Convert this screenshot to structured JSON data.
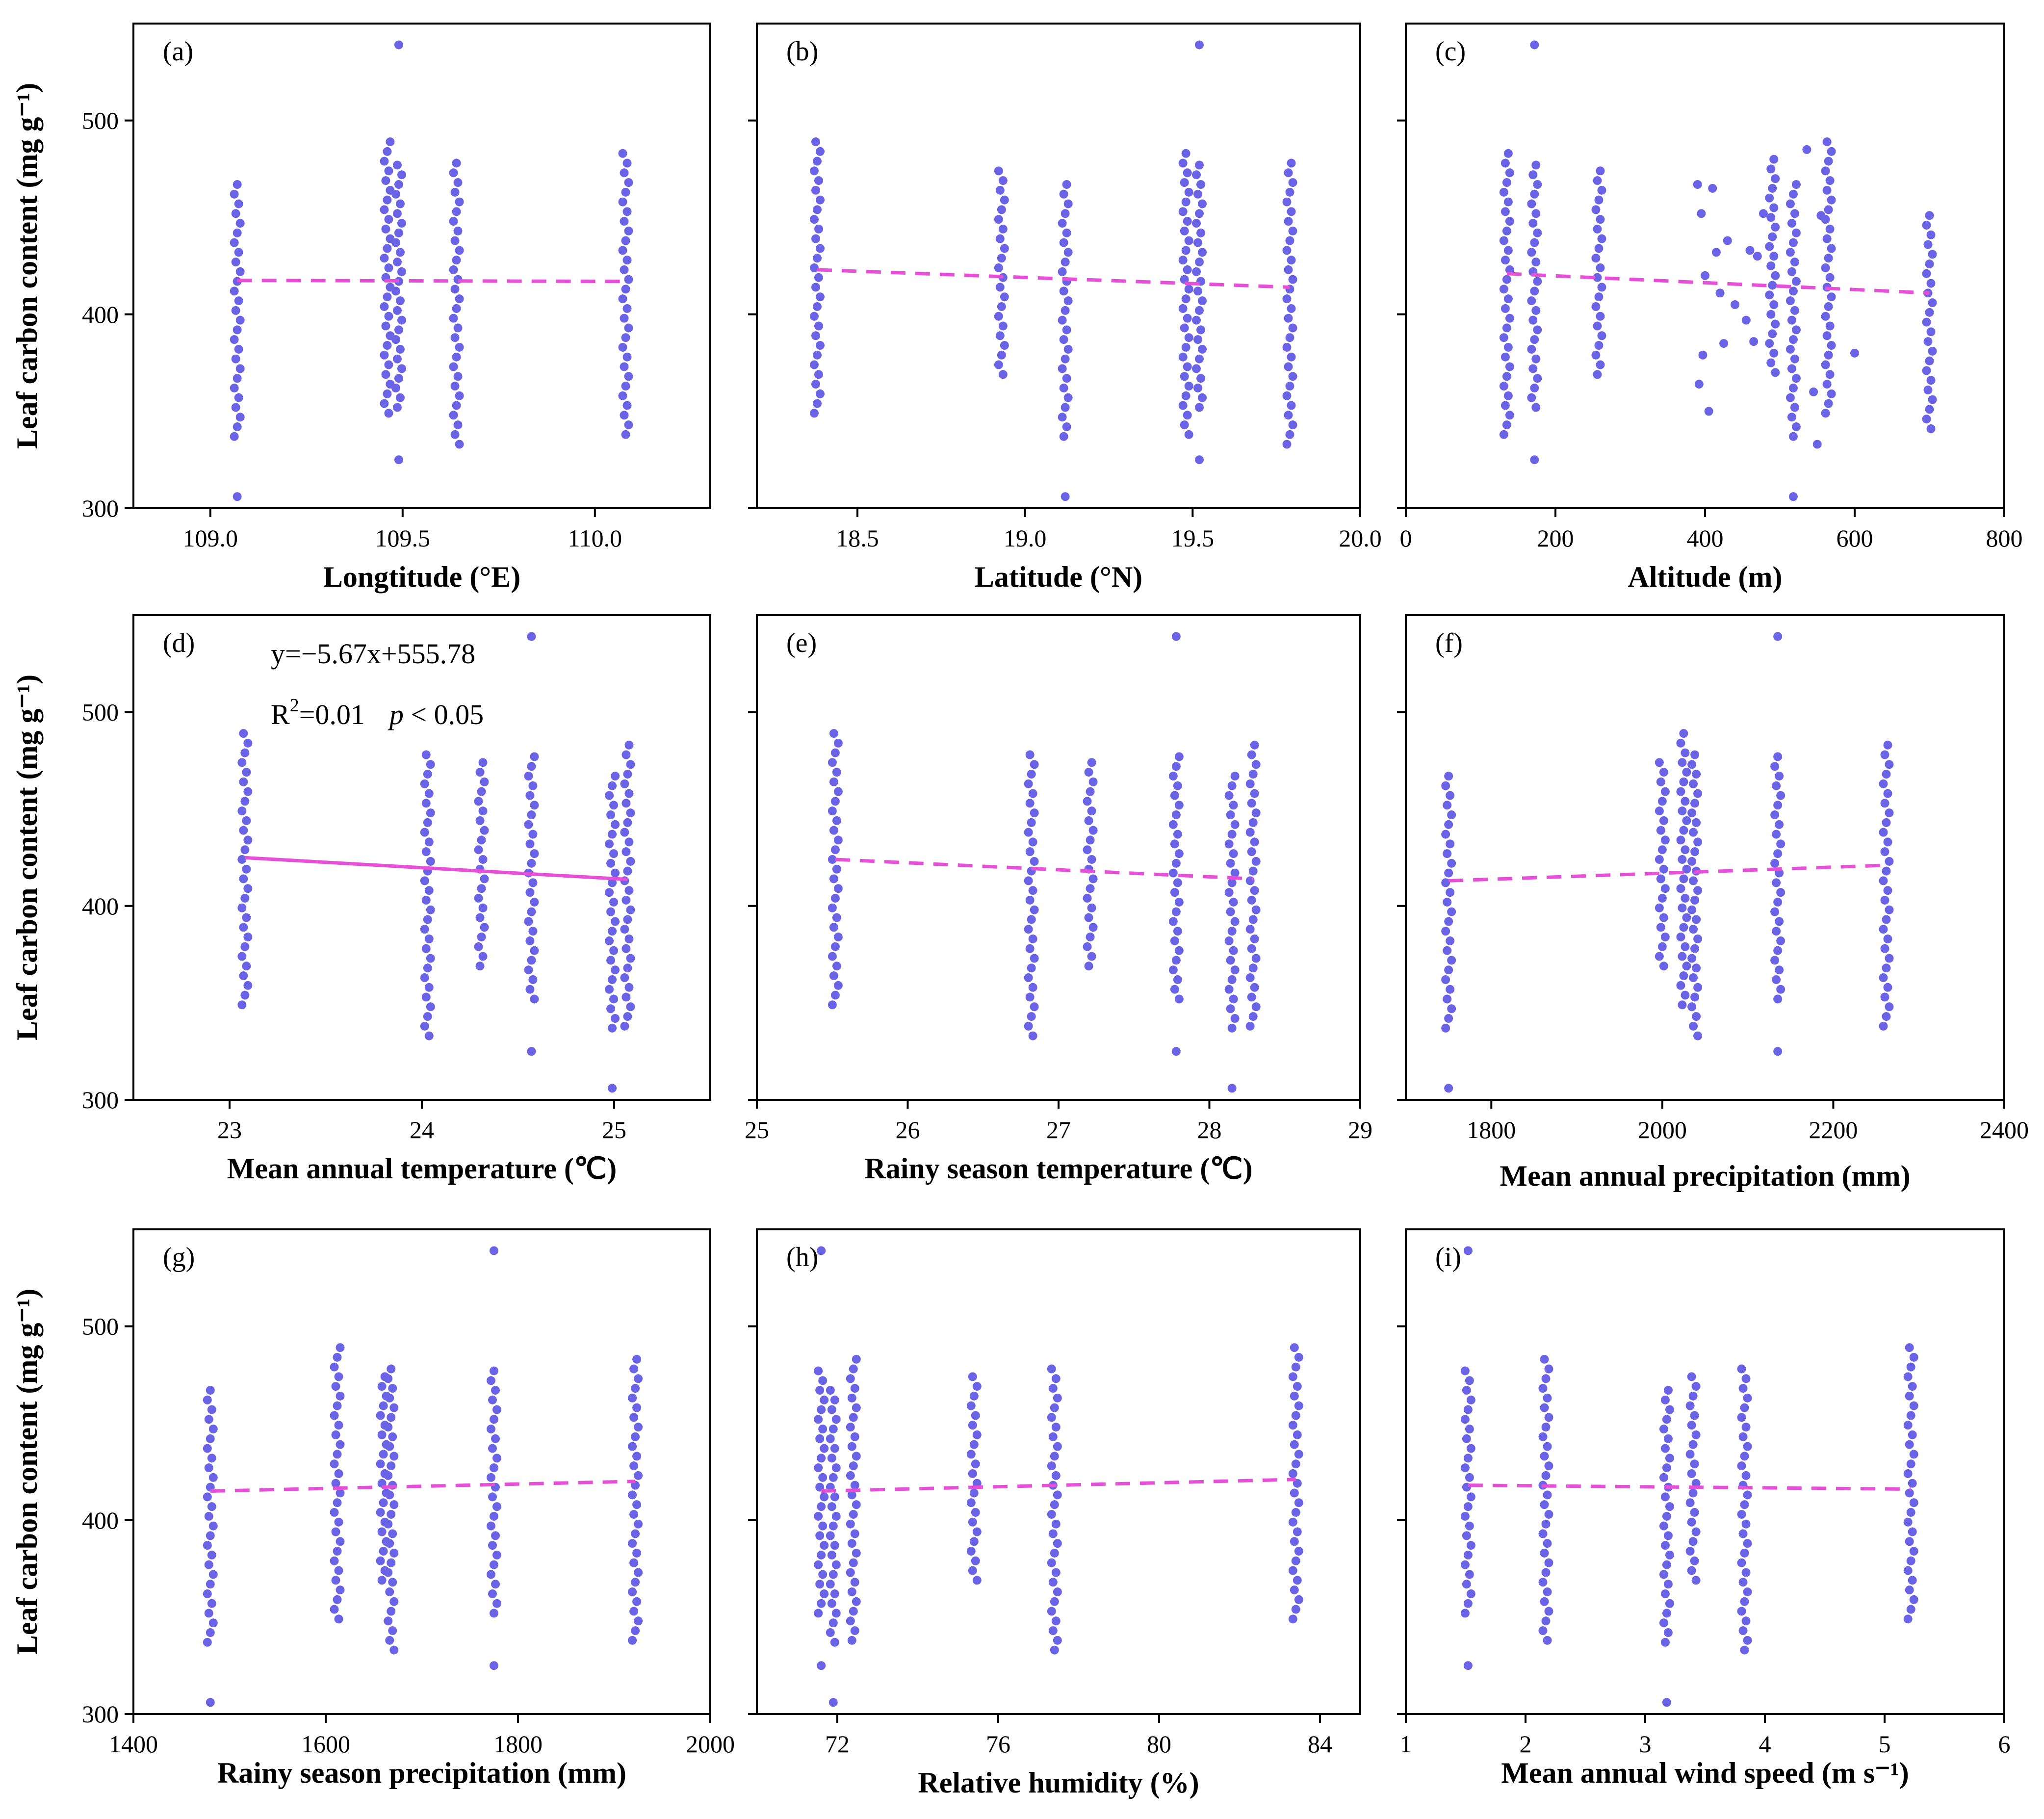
{
  "colors": {
    "points": "#6b63e6",
    "trend": "#e64fd8",
    "axis": "#000000"
  },
  "chart_data": [
    {
      "id": "a",
      "type": "scatter",
      "panel_label": "(a)",
      "xlabel": "Longtitude (°E)",
      "ylabel": "Leaf  carbon  content  (mg g⁻¹)",
      "xlim": [
        108.8,
        110.3
      ],
      "ylim": [
        300,
        550
      ],
      "xticks": [
        109.0,
        109.5,
        110.0
      ],
      "xtick_labels": [
        "109.0",
        "109.5",
        "110.0"
      ],
      "yticks": [
        300,
        400,
        500
      ],
      "ytick_labels": [
        "300",
        "400",
        "500"
      ],
      "groups": [
        {
          "x": 109.07,
          "min": 337,
          "max": 467,
          "outliers": [
            306
          ]
        },
        {
          "x": 109.46,
          "min": 349,
          "max": 490
        },
        {
          "x": 109.49,
          "min": 352,
          "max": 480,
          "outliers": [
            325,
            539
          ]
        },
        {
          "x": 109.64,
          "min": 333,
          "max": 481
        },
        {
          "x": 110.08,
          "min": 338,
          "max": 486
        }
      ],
      "trend": {
        "style": "dashed",
        "x": [
          109.07,
          110.08
        ],
        "y": [
          417.5,
          417.0
        ]
      }
    },
    {
      "id": "b",
      "type": "scatter",
      "panel_label": "(b)",
      "xlabel": "Latitude (°N)",
      "ylabel": "",
      "xlim": [
        18.2,
        20.0
      ],
      "ylim": [
        300,
        550
      ],
      "xticks": [
        18.5,
        19.0,
        19.5,
        20.0
      ],
      "xtick_labels": [
        "18.5",
        "19.0",
        "19.5",
        "20.0"
      ],
      "yticks": [
        300,
        400,
        500
      ],
      "ytick_labels": [
        "",
        "",
        ""
      ],
      "groups": [
        {
          "x": 18.38,
          "min": 349,
          "max": 491
        },
        {
          "x": 18.93,
          "min": 369,
          "max": 476
        },
        {
          "x": 19.12,
          "min": 337,
          "max": 467,
          "outliers": [
            306
          ]
        },
        {
          "x": 19.48,
          "min": 338,
          "max": 486
        },
        {
          "x": 19.52,
          "min": 352,
          "max": 480,
          "outliers": [
            325,
            539
          ]
        },
        {
          "x": 19.79,
          "min": 333,
          "max": 481
        }
      ],
      "trend": {
        "style": "dashed",
        "x": [
          18.38,
          19.79
        ],
        "y": [
          423,
          414
        ]
      }
    },
    {
      "id": "c",
      "type": "scatter",
      "panel_label": "(c)",
      "xlabel": "Altitude (m)",
      "ylabel": "",
      "xlim": [
        0,
        800
      ],
      "ylim": [
        300,
        550
      ],
      "xticks": [
        0,
        200,
        400,
        600,
        800
      ],
      "xtick_labels": [
        "0",
        "200",
        "400",
        "600",
        "800"
      ],
      "yticks": [
        300,
        400,
        500
      ],
      "ytick_labels": [
        "",
        "",
        ""
      ],
      "groups": [
        {
          "x": 135,
          "min": 338,
          "max": 486
        },
        {
          "x": 172,
          "min": 352,
          "max": 480,
          "outliers": [
            325,
            539
          ]
        },
        {
          "x": 258,
          "min": 369,
          "max": 476
        },
        {
          "x": 490,
          "min": 370,
          "max": 481
        },
        {
          "x": 518,
          "min": 337,
          "max": 467,
          "outliers": [
            306
          ]
        },
        {
          "x": 565,
          "min": 349,
          "max": 491
        },
        {
          "x": 700,
          "min": 341,
          "max": 452
        }
      ],
      "scatter_points": [
        {
          "x": 390,
          "y": 467
        },
        {
          "x": 395,
          "y": 452
        },
        {
          "x": 400,
          "y": 420
        },
        {
          "x": 397,
          "y": 379
        },
        {
          "x": 392,
          "y": 364
        },
        {
          "x": 405,
          "y": 350
        },
        {
          "x": 410,
          "y": 465
        },
        {
          "x": 415,
          "y": 432
        },
        {
          "x": 420,
          "y": 411
        },
        {
          "x": 425,
          "y": 385
        },
        {
          "x": 430,
          "y": 438
        },
        {
          "x": 440,
          "y": 405
        },
        {
          "x": 455,
          "y": 397
        },
        {
          "x": 460,
          "y": 433
        },
        {
          "x": 465,
          "y": 386
        },
        {
          "x": 470,
          "y": 430
        },
        {
          "x": 478,
          "y": 452
        },
        {
          "x": 536,
          "y": 485
        },
        {
          "x": 545,
          "y": 360
        },
        {
          "x": 550,
          "y": 333
        },
        {
          "x": 555,
          "y": 451
        },
        {
          "x": 600,
          "y": 380
        }
      ],
      "trend": {
        "style": "dashed",
        "x": [
          135,
          700
        ],
        "y": [
          421,
          411
        ]
      }
    },
    {
      "id": "d",
      "type": "scatter",
      "panel_label": "(d)",
      "xlabel": "Mean  annual  temperature (℃)",
      "ylabel": "Leaf  carbon  content  (mg g⁻¹)",
      "xlim": [
        22.5,
        25.5
      ],
      "ylim": [
        300,
        550
      ],
      "xticks": [
        23,
        24,
        25
      ],
      "xtick_labels": [
        "23",
        "24",
        "25"
      ],
      "yticks": [
        300,
        400,
        500
      ],
      "ytick_labels": [
        "300",
        "400",
        "500"
      ],
      "groups": [
        {
          "x": 23.08,
          "min": 349,
          "max": 491
        },
        {
          "x": 24.03,
          "min": 333,
          "max": 481
        },
        {
          "x": 24.31,
          "min": 369,
          "max": 476
        },
        {
          "x": 24.57,
          "min": 352,
          "max": 480,
          "outliers": [
            325,
            539
          ]
        },
        {
          "x": 24.99,
          "min": 337,
          "max": 467,
          "outliers": [
            306
          ]
        },
        {
          "x": 25.07,
          "min": 338,
          "max": 486
        }
      ],
      "trend": {
        "style": "solid",
        "x": [
          23.08,
          25.07
        ],
        "y": [
          424.9,
          413.7
        ]
      },
      "equation": "y=−5.67x+555.78",
      "r2_prefix": "R",
      "r2_sup": "2",
      "r2_value": "=0.01",
      "p_symbol": "p",
      "p_text": " < 0.05"
    },
    {
      "id": "e",
      "type": "scatter",
      "panel_label": "(e)",
      "xlabel": "Rainy  season  temperature (℃)",
      "ylabel": "",
      "xlim": [
        25,
        29
      ],
      "ylim": [
        300,
        550
      ],
      "xticks": [
        25,
        26,
        27,
        28,
        29
      ],
      "xtick_labels": [
        "25",
        "26",
        "27",
        "28",
        "29"
      ],
      "yticks": [
        300,
        400,
        500
      ],
      "ytick_labels": [
        "",
        "",
        ""
      ],
      "groups": [
        {
          "x": 25.52,
          "min": 349,
          "max": 491
        },
        {
          "x": 26.82,
          "min": 333,
          "max": 481
        },
        {
          "x": 27.21,
          "min": 369,
          "max": 476
        },
        {
          "x": 27.78,
          "min": 352,
          "max": 480,
          "outliers": [
            325,
            539
          ]
        },
        {
          "x": 28.15,
          "min": 337,
          "max": 467,
          "outliers": [
            306
          ]
        },
        {
          "x": 28.29,
          "min": 338,
          "max": 486
        }
      ],
      "trend": {
        "style": "dashed",
        "x": [
          25.52,
          28.29
        ],
        "y": [
          424,
          414
        ]
      }
    },
    {
      "id": "f",
      "type": "scatter",
      "panel_label": "(f)",
      "xlabel": "Mean  annual  precipitation (mm)",
      "ylabel": "",
      "xlim": [
        1700,
        2400
      ],
      "ylim": [
        300,
        550
      ],
      "xticks": [
        1800,
        2000,
        2200,
        2400
      ],
      "xtick_labels": [
        "1800",
        "2000",
        "2200",
        "2400"
      ],
      "yticks": [
        300,
        400,
        500
      ],
      "ytick_labels": [
        "",
        "",
        ""
      ],
      "groups": [
        {
          "x": 1750,
          "min": 337,
          "max": 467,
          "outliers": [
            306
          ]
        },
        {
          "x": 2000,
          "min": 369,
          "max": 476
        },
        {
          "x": 2025,
          "min": 349,
          "max": 491
        },
        {
          "x": 2038,
          "min": 333,
          "max": 481
        },
        {
          "x": 2135,
          "min": 352,
          "max": 480,
          "outliers": [
            325,
            539
          ]
        },
        {
          "x": 2262,
          "min": 338,
          "max": 486
        }
      ],
      "trend": {
        "style": "dashed",
        "x": [
          1750,
          2262
        ],
        "y": [
          413,
          421
        ]
      }
    },
    {
      "id": "g",
      "type": "scatter",
      "panel_label": "(g)",
      "xlabel": "Rainy season  precipitation (mm)",
      "ylabel": "Leaf  carbon  content  (mg g⁻¹)",
      "xlim": [
        1400,
        2000
      ],
      "ylim": [
        300,
        550
      ],
      "xticks": [
        1400,
        1600,
        1800,
        2000
      ],
      "xtick_labels": [
        "1400",
        "1600",
        "1800",
        "2000"
      ],
      "yticks": [
        300,
        400,
        500
      ],
      "ytick_labels": [
        "300",
        "400",
        "500"
      ],
      "groups": [
        {
          "x": 1480,
          "min": 337,
          "max": 467,
          "outliers": [
            306
          ]
        },
        {
          "x": 1612,
          "min": 349,
          "max": 491
        },
        {
          "x": 1660,
          "min": 369,
          "max": 476
        },
        {
          "x": 1668,
          "min": 333,
          "max": 481
        },
        {
          "x": 1775,
          "min": 352,
          "max": 480,
          "outliers": [
            325,
            539
          ]
        },
        {
          "x": 1922,
          "min": 338,
          "max": 486
        }
      ],
      "trend": {
        "style": "dashed",
        "x": [
          1480,
          1922
        ],
        "y": [
          415,
          420
        ]
      }
    },
    {
      "id": "h",
      "type": "scatter",
      "panel_label": "(h)",
      "xlabel": "Relative  humidity (%)",
      "ylabel": "",
      "xlim": [
        70,
        85
      ],
      "ylim": [
        300,
        550
      ],
      "xticks": [
        72,
        76,
        80,
        84
      ],
      "xtick_labels": [
        "72",
        "76",
        "80",
        "84"
      ],
      "yticks": [
        300,
        400,
        500
      ],
      "ytick_labels": [
        "",
        "",
        ""
      ],
      "groups": [
        {
          "x": 71.6,
          "min": 352,
          "max": 480,
          "outliers": [
            325,
            539
          ]
        },
        {
          "x": 71.9,
          "min": 337,
          "max": 467,
          "outliers": [
            306
          ]
        },
        {
          "x": 72.4,
          "min": 338,
          "max": 486
        },
        {
          "x": 75.4,
          "min": 369,
          "max": 476
        },
        {
          "x": 77.4,
          "min": 333,
          "max": 481
        },
        {
          "x": 83.4,
          "min": 349,
          "max": 491
        }
      ],
      "trend": {
        "style": "dashed",
        "x": [
          71.6,
          83.4
        ],
        "y": [
          415,
          421
        ]
      }
    },
    {
      "id": "i",
      "type": "scatter",
      "panel_label": "(i)",
      "xlabel": "Mean annual wind speed (m s⁻¹)",
      "ylabel": "",
      "xlim": [
        1,
        6
      ],
      "ylim": [
        300,
        550
      ],
      "xticks": [
        1,
        2,
        3,
        4,
        5,
        6
      ],
      "xtick_labels": [
        "1",
        "2",
        "3",
        "4",
        "5",
        "6"
      ],
      "yticks": [
        300,
        400,
        500
      ],
      "ytick_labels": [
        "",
        "",
        ""
      ],
      "groups": [
        {
          "x": 1.52,
          "min": 352,
          "max": 480,
          "outliers": [
            325,
            539
          ]
        },
        {
          "x": 2.17,
          "min": 338,
          "max": 486
        },
        {
          "x": 3.18,
          "min": 337,
          "max": 467,
          "outliers": [
            306
          ]
        },
        {
          "x": 3.4,
          "min": 369,
          "max": 476
        },
        {
          "x": 3.83,
          "min": 333,
          "max": 481
        },
        {
          "x": 5.22,
          "min": 349,
          "max": 491
        }
      ],
      "trend": {
        "style": "dashed",
        "x": [
          1.52,
          5.22
        ],
        "y": [
          418,
          416
        ]
      }
    }
  ]
}
